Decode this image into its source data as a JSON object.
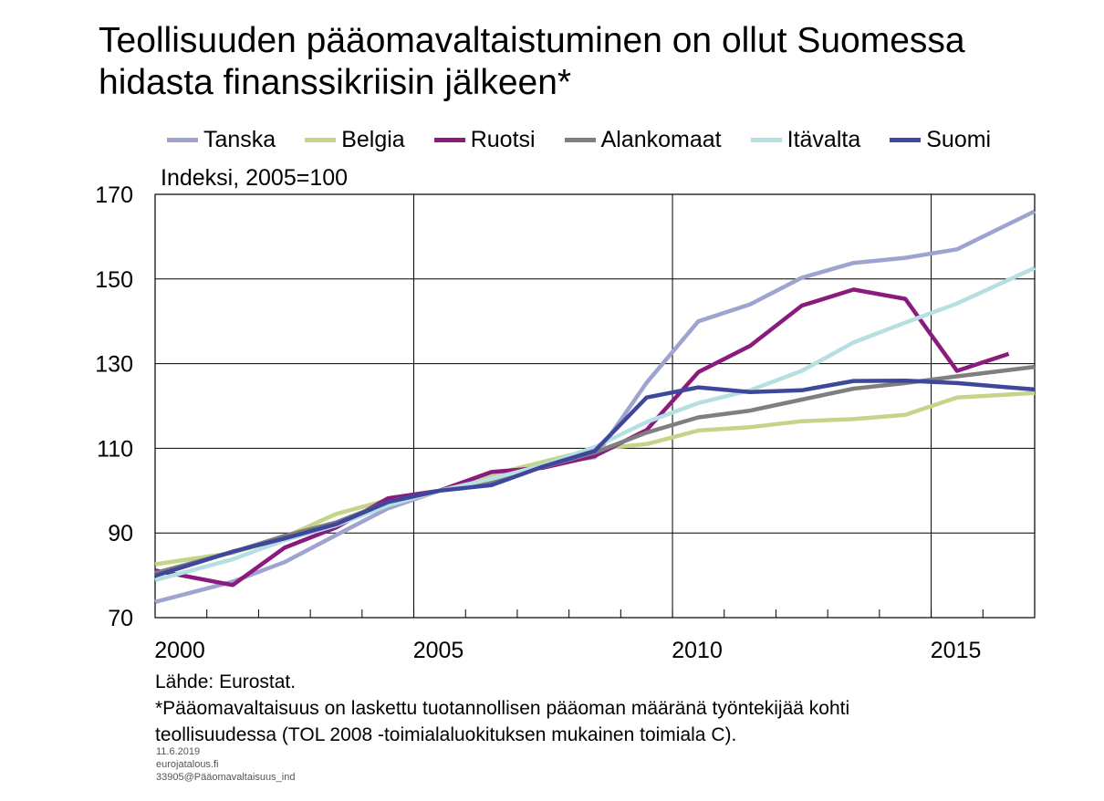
{
  "chart_data": {
    "type": "line",
    "title": [
      "Teollisuuden pääomavaltaistuminen on ollut Suomessa",
      "hidasta finanssikriisin jälkeen*"
    ],
    "ylabel": "Indeksi, 2005=100",
    "xlabel": "",
    "ylim": [
      70,
      170
    ],
    "yticks": [
      "70",
      "90",
      "110",
      "130",
      "150",
      "170"
    ],
    "xticks": [
      "2000",
      "2005",
      "2010",
      "2015"
    ],
    "xlim": [
      2000,
      2016
    ],
    "grid": true,
    "legend_position": "top",
    "x": [
      2000,
      2001,
      2002,
      2003,
      2004,
      2005,
      2006,
      2007,
      2008,
      2009,
      2010,
      2011,
      2012,
      2013,
      2014,
      2015,
      2016
    ],
    "series": [
      {
        "name": "Tanska",
        "color": "#9fa3d0",
        "values": [
          75.3,
          78.5,
          83.1,
          89.5,
          95.8,
          100,
          103.3,
          106.2,
          107.9,
          125.5,
          140.0,
          144.0,
          150.3,
          153.8,
          155.0,
          157.0,
          163.0
        ]
      },
      {
        "name": "Belgia",
        "color": "#c4d58a",
        "values": [
          83.5,
          85.3,
          89.0,
          94.5,
          97.8,
          100,
          103.7,
          106.8,
          109.8,
          111.0,
          114.2,
          115.0,
          116.4,
          116.9,
          117.9,
          122.0,
          122.7
        ]
      },
      {
        "name": "Ruotsi",
        "color": "#8b1a7e",
        "values": [
          80.0,
          77.7,
          86.5,
          91.3,
          98.2,
          100,
          104.4,
          105.4,
          108.2,
          114.3,
          128.0,
          134.2,
          143.7,
          147.5,
          145.3,
          128.3,
          132.3
        ]
      },
      {
        "name": "Alankomaat",
        "color": "#7f7f7f",
        "values": [
          82.2,
          85.5,
          89.3,
          92.5,
          97.3,
          100,
          102.2,
          105.6,
          109.0,
          113.7,
          117.3,
          118.9,
          121.5,
          124.1,
          125.4,
          127.0,
          128.5
        ]
      },
      {
        "name": "Itävalta",
        "color": "#b5dfe1",
        "values": [
          80.5,
          83.8,
          88.3,
          91.8,
          96.5,
          100,
          102.8,
          106.0,
          110.3,
          116.2,
          120.7,
          123.7,
          128.3,
          135.0,
          139.7,
          144.2,
          149.8
        ]
      },
      {
        "name": "Suomi",
        "color": "#3f479c",
        "values": [
          81.8,
          85.6,
          88.7,
          92.1,
          97.3,
          100,
          101.3,
          105.7,
          109.4,
          122.0,
          124.4,
          123.3,
          123.7,
          125.9,
          126.0,
          125.4,
          124.4
        ]
      }
    ]
  },
  "footer": {
    "source": "Lähde: Eurostat.",
    "note_line1": "*Pääomavaltaisuus on laskettu tuotannollisen pääoman määränä työntekijää kohti",
    "note_line2": "teollisuudessa (TOL 2008 -toimialaluokituksen mukainen toimiala C)."
  },
  "meta": {
    "date": "11.6.2019",
    "site": "eurojatalous.fi",
    "file": "33905@Pääomavaltaisuus_ind"
  }
}
